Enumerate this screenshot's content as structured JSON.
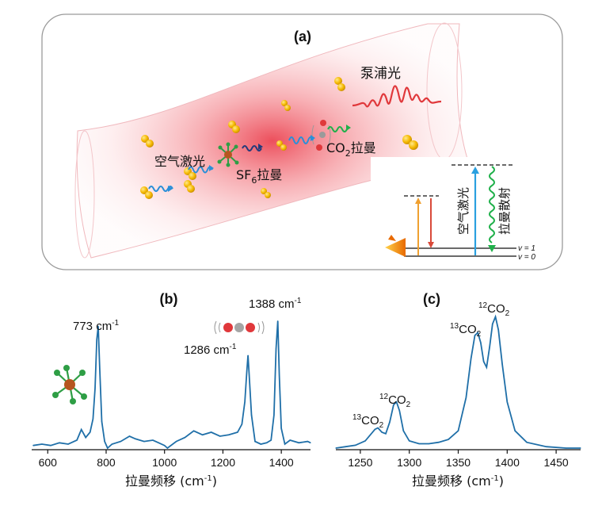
{
  "panel_a": {
    "label": "(a)",
    "pump": "泵浦光",
    "air_laser": "空气激光",
    "sf6_prefix": "SF",
    "sf6_sub": "6",
    "sf6_suffix": "拉曼",
    "co2_prefix": "CO",
    "co2_sub": "2",
    "co2_suffix": "拉曼",
    "energy": {
      "air_laser": "空气激光",
      "raman_scatter": "拉曼散射",
      "v1": "v = 1",
      "v0": "v = 0"
    }
  },
  "panel_b": {
    "label": "(b)",
    "peak_labels": [
      "773 cm",
      "1286 cm",
      "1388 cm"
    ],
    "peak_sup": "-1",
    "xlabel": "拉曼频移 (cm",
    "xlabel_sup": "-1",
    "xlabel_end": ")"
  },
  "panel_c": {
    "label": "(c)",
    "sup_13": "13",
    "sup_12": "12",
    "co": "CO",
    "sub2": "2",
    "xlabel": "拉曼频移 (cm",
    "xlabel_sup": "-1",
    "xlabel_end": ")"
  },
  "colors": {
    "curve": "#1f6fa8",
    "pump": "#e0383b",
    "air": "#2a8fd8",
    "raman": "#1fb04a"
  },
  "chart_data": [
    {
      "type": "line",
      "title": "(b)",
      "xlabel": "拉曼频移 (cm-1)",
      "ylabel": "",
      "xlim": [
        545,
        1500
      ],
      "xticks": [
        600,
        800,
        1000,
        1200,
        1400
      ],
      "x": [
        550,
        580,
        610,
        640,
        670,
        700,
        715,
        730,
        745,
        755,
        762,
        768,
        773,
        778,
        785,
        795,
        805,
        820,
        850,
        880,
        900,
        930,
        960,
        980,
        1000,
        1010,
        1040,
        1070,
        1100,
        1130,
        1160,
        1190,
        1220,
        1250,
        1265,
        1275,
        1282,
        1286,
        1290,
        1298,
        1310,
        1330,
        1350,
        1365,
        1375,
        1382,
        1388,
        1393,
        1400,
        1412,
        1430,
        1460,
        1490,
        1500
      ],
      "y": [
        0.02,
        0.03,
        0.02,
        0.04,
        0.03,
        0.06,
        0.14,
        0.08,
        0.12,
        0.22,
        0.45,
        0.82,
        0.92,
        0.6,
        0.2,
        0.05,
        0.0,
        0.03,
        0.05,
        0.09,
        0.07,
        0.05,
        0.06,
        0.04,
        0.02,
        0.0,
        0.05,
        0.08,
        0.13,
        0.1,
        0.12,
        0.09,
        0.1,
        0.12,
        0.18,
        0.35,
        0.58,
        0.7,
        0.55,
        0.25,
        0.05,
        0.03,
        0.04,
        0.06,
        0.25,
        0.75,
        0.96,
        0.55,
        0.15,
        0.03,
        0.06,
        0.04,
        0.05,
        0.04
      ],
      "peaks": [
        {
          "x": 773,
          "label": "773 cm-1"
        },
        {
          "x": 1286,
          "label": "1286 cm-1"
        },
        {
          "x": 1388,
          "label": "1388 cm-1"
        }
      ]
    },
    {
      "type": "line",
      "title": "(c)",
      "xlabel": "拉曼频移 (cm-1)",
      "ylabel": "",
      "xlim": [
        1225,
        1475
      ],
      "xticks": [
        1250,
        1300,
        1350,
        1400,
        1450
      ],
      "x": [
        1225,
        1235,
        1245,
        1255,
        1260,
        1265,
        1268,
        1272,
        1276,
        1280,
        1284,
        1287,
        1290,
        1294,
        1300,
        1310,
        1320,
        1330,
        1340,
        1350,
        1358,
        1363,
        1367,
        1370,
        1373,
        1376,
        1379,
        1382,
        1385,
        1388,
        1391,
        1395,
        1400,
        1408,
        1420,
        1440,
        1460,
        1475
      ],
      "y": [
        0.0,
        0.01,
        0.02,
        0.05,
        0.09,
        0.13,
        0.14,
        0.11,
        0.1,
        0.18,
        0.3,
        0.32,
        0.26,
        0.12,
        0.05,
        0.03,
        0.03,
        0.04,
        0.06,
        0.12,
        0.35,
        0.62,
        0.78,
        0.8,
        0.73,
        0.6,
        0.56,
        0.7,
        0.86,
        0.91,
        0.82,
        0.58,
        0.32,
        0.12,
        0.04,
        0.01,
        0.0,
        0.0
      ],
      "peaks": [
        {
          "x": 1268,
          "label": "13CO2"
        },
        {
          "x": 1287,
          "label": "12CO2"
        },
        {
          "x": 1370,
          "label": "13CO2"
        },
        {
          "x": 1388,
          "label": "12CO2"
        }
      ]
    }
  ]
}
